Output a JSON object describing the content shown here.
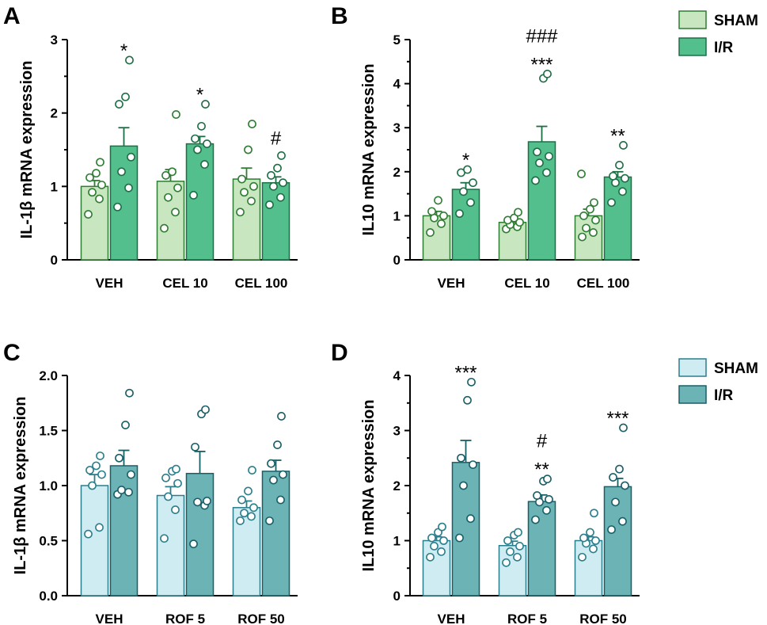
{
  "chart_data": [
    {
      "type": "bar",
      "panel": "A",
      "ylabel": "IL-1β mRNA expression",
      "ylim": [
        0,
        3
      ],
      "yticks": [
        "0",
        "1",
        "2",
        "3"
      ],
      "tick_values": [
        0,
        1,
        2,
        3
      ],
      "minor_ticks": true,
      "categories": [
        "VEH",
        "CEL 10",
        "CEL 100"
      ],
      "series": [
        {
          "name": "SHAM",
          "values": [
            1.0,
            1.07,
            1.1
          ],
          "sem": [
            0.08,
            0.16,
            0.15
          ],
          "points": [
            [
              0.62,
              0.83,
              0.92,
              1.02,
              1.12,
              1.18,
              1.33
            ],
            [
              0.43,
              0.65,
              0.85,
              0.98,
              1.15,
              1.2,
              1.98
            ],
            [
              0.65,
              0.8,
              0.92,
              1.0,
              1.1,
              1.5,
              1.85
            ]
          ]
        },
        {
          "name": "I/R",
          "values": [
            1.55,
            1.58,
            1.05
          ],
          "sem": [
            0.25,
            0.1,
            0.08
          ],
          "points": [
            [
              0.72,
              0.98,
              1.2,
              1.4,
              2.12,
              2.22,
              2.72
            ],
            [
              0.88,
              1.3,
              1.5,
              1.58,
              1.65,
              1.82,
              2.12
            ],
            [
              0.75,
              0.85,
              1.0,
              1.05,
              1.15,
              1.25,
              1.42
            ]
          ]
        }
      ],
      "annotations": [
        [
          "*"
        ],
        [
          "*"
        ],
        [
          "#"
        ]
      ]
    },
    {
      "type": "bar",
      "panel": "B",
      "ylabel": "IL10 mRNA expression",
      "ylim": [
        0,
        5
      ],
      "yticks": [
        "0",
        "1",
        "2",
        "3",
        "4",
        "5"
      ],
      "tick_values": [
        0,
        1,
        2,
        3,
        4,
        5
      ],
      "minor_ticks": true,
      "categories": [
        "VEH",
        "CEL 10",
        "CEL 100"
      ],
      "series": [
        {
          "name": "SHAM",
          "values": [
            1.0,
            0.85,
            1.0
          ],
          "sem": [
            0.1,
            0.06,
            0.15
          ],
          "points": [
            [
              0.62,
              0.82,
              0.95,
              1.0,
              1.1,
              1.35
            ],
            [
              0.7,
              0.75,
              0.8,
              0.85,
              0.9,
              0.95,
              1.08
            ],
            [
              0.52,
              0.62,
              0.72,
              0.9,
              1.0,
              1.15,
              1.3,
              1.95
            ]
          ]
        },
        {
          "name": "I/R",
          "values": [
            1.6,
            2.68,
            1.88
          ],
          "sem": [
            0.15,
            0.35,
            0.12
          ],
          "points": [
            [
              1.05,
              1.3,
              1.55,
              1.75,
              1.98,
              2.05
            ],
            [
              1.8,
              1.98,
              2.2,
              2.35,
              2.45,
              4.12,
              4.22
            ],
            [
              1.3,
              1.55,
              1.75,
              1.85,
              1.9,
              2.15,
              2.6
            ]
          ]
        }
      ],
      "annotations": [
        [
          "*"
        ],
        [
          "###",
          "***"
        ],
        [
          "**"
        ]
      ]
    },
    {
      "type": "bar",
      "panel": "C",
      "ylabel": "IL-1β mRNA expression",
      "ylim": [
        0,
        2
      ],
      "yticks": [
        "0.0",
        "0.5",
        "1.0",
        "1.5",
        "2.0"
      ],
      "tick_values": [
        0,
        0.5,
        1,
        1.5,
        2
      ],
      "minor_ticks": false,
      "categories": [
        "VEH",
        "ROF 5",
        "ROF 50"
      ],
      "series": [
        {
          "name": "SHAM",
          "values": [
            1.0,
            0.91,
            0.8
          ],
          "sem": [
            0.1,
            0.08,
            0.06
          ],
          "points": [
            [
              0.56,
              0.62,
              1.0,
              1.1,
              1.14,
              1.18,
              1.27
            ],
            [
              0.52,
              0.78,
              0.9,
              1.02,
              1.07,
              1.13,
              1.15
            ],
            [
              0.68,
              0.72,
              0.75,
              0.8,
              0.87,
              0.95,
              1.14
            ]
          ]
        },
        {
          "name": "I/R",
          "values": [
            1.18,
            1.11,
            1.13
          ],
          "sem": [
            0.14,
            0.2,
            0.1
          ],
          "points": [
            [
              0.92,
              0.94,
              0.96,
              1.1,
              1.25,
              1.55,
              1.84
            ],
            [
              0.47,
              0.82,
              0.85,
              0.86,
              1.35,
              1.65,
              1.69
            ],
            [
              0.68,
              0.87,
              1.05,
              1.1,
              1.2,
              1.37,
              1.63
            ]
          ]
        }
      ],
      "annotations": [
        [],
        [],
        []
      ]
    },
    {
      "type": "bar",
      "panel": "D",
      "ylabel": "IL10 mRNA expression",
      "ylim": [
        0,
        4
      ],
      "yticks": [
        "0",
        "1",
        "2",
        "3",
        "4"
      ],
      "tick_values": [
        0,
        1,
        2,
        3,
        4
      ],
      "minor_ticks": true,
      "categories": [
        "VEH",
        "ROF 5",
        "ROF 50"
      ],
      "series": [
        {
          "name": "SHAM",
          "values": [
            1.0,
            0.91,
            1.0
          ],
          "sem": [
            0.07,
            0.08,
            0.07
          ],
          "points": [
            [
              0.7,
              0.8,
              0.9,
              1.0,
              1.05,
              1.15,
              1.25
            ],
            [
              0.6,
              0.7,
              0.8,
              0.9,
              1.0,
              1.1,
              1.15
            ],
            [
              0.7,
              0.85,
              0.95,
              1.0,
              1.05,
              1.15,
              1.5
            ]
          ]
        },
        {
          "name": "I/R",
          "values": [
            2.42,
            1.71,
            1.98
          ],
          "sem": [
            0.4,
            0.12,
            0.15
          ],
          "points": [
            [
              1.05,
              1.4,
              2.0,
              2.38,
              2.5,
              3.55,
              3.88
            ],
            [
              1.38,
              1.55,
              1.7,
              1.75,
              1.82,
              2.08,
              2.12
            ],
            [
              1.2,
              1.35,
              1.7,
              2.0,
              2.15,
              2.3,
              3.05
            ]
          ]
        }
      ],
      "annotations": [
        [
          "***"
        ],
        [
          "#",
          "**"
        ],
        [
          "***"
        ]
      ]
    }
  ],
  "legends": [
    {
      "entries": [
        {
          "label": "SHAM",
          "fill": "#c8e6bf",
          "stroke": "#2e7d32"
        },
        {
          "label": "I/R",
          "fill": "#52bf8c",
          "stroke": "#1e6e45"
        }
      ]
    },
    {
      "entries": [
        {
          "label": "SHAM",
          "fill": "#d0ecf3",
          "stroke": "#2a7f8c"
        },
        {
          "label": "I/R",
          "fill": "#6bb3b5",
          "stroke": "#1a5f66"
        }
      ]
    }
  ],
  "colors": {
    "cel_sham_fill": "#c8e6bf",
    "cel_sham_stroke": "#2e7d32",
    "cel_ir_fill": "#52bf8c",
    "cel_ir_stroke": "#1e6e45",
    "rof_sham_fill": "#d0ecf3",
    "rof_sham_stroke": "#2a7f8c",
    "rof_ir_fill": "#6bb3b5",
    "rof_ir_stroke": "#1a5f66",
    "point_fill": "#ffffff"
  }
}
